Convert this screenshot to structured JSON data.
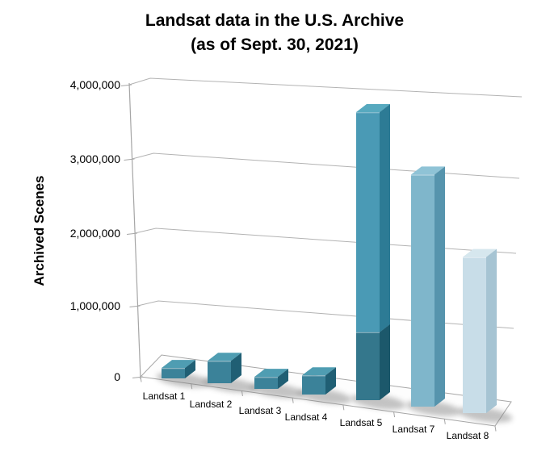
{
  "title": {
    "line1": "Landsat data in the U.S. Archive",
    "line2": "(as of Sept. 30, 2021)"
  },
  "y_axis": {
    "label": "Archived Scenes",
    "ticks": [
      "0",
      "1,000,000",
      "2,000,000",
      "3,000,000",
      "4,000,000"
    ]
  },
  "chart_data": {
    "type": "bar",
    "style": "3d-column",
    "title": "Landsat data in the U.S. Archive (as of Sept. 30, 2021)",
    "xlabel": "",
    "ylabel": "Archived Scenes",
    "ylim": [
      0,
      4000000
    ],
    "yticks": [
      0,
      1000000,
      2000000,
      3000000,
      4000000
    ],
    "grid": true,
    "legend": false,
    "categories": [
      "Landsat 1",
      "Landsat 2",
      "Landsat 3",
      "Landsat 4",
      "Landsat 5",
      "Landsat 7",
      "Landsat 8"
    ],
    "values": [
      130000,
      280000,
      150000,
      240000,
      3600000,
      2900000,
      1950000
    ],
    "landsat5_stack": {
      "lower_segment": 850000,
      "upper_segment": 2750000
    }
  },
  "colors": {
    "background": "#ffffff",
    "gridline": "#b3b3b3",
    "axis": "#a6a6a6",
    "shadow": "#7d7d7d"
  },
  "bars": [
    {
      "id": "landsat-1",
      "label": "Landsat 1",
      "value": 130000,
      "colors": {
        "front": "#3b8299",
        "side": "#205f74",
        "top": "#4f9db2"
      }
    },
    {
      "id": "landsat-2",
      "label": "Landsat 2",
      "value": 280000,
      "colors": {
        "front": "#3b8299",
        "side": "#205f74",
        "top": "#4f9db2"
      }
    },
    {
      "id": "landsat-3",
      "label": "Landsat 3",
      "value": 150000,
      "colors": {
        "front": "#3b8299",
        "side": "#205f74",
        "top": "#4f9db2"
      }
    },
    {
      "id": "landsat-4",
      "label": "Landsat 4",
      "value": 240000,
      "colors": {
        "front": "#3b8299",
        "side": "#205f74",
        "top": "#4f9db2"
      }
    },
    {
      "id": "landsat-5",
      "label": "Landsat 5",
      "value": 3600000,
      "segments": [
        {
          "name": "lower",
          "value": 850000,
          "colors": {
            "front": "#34778c",
            "side": "#1c586b",
            "top": "#417f93"
          }
        },
        {
          "name": "upper",
          "value": 2750000,
          "colors": {
            "front": "#4a9ab5",
            "side": "#2d7b95",
            "top": "#57a9bf"
          }
        }
      ]
    },
    {
      "id": "landsat-7",
      "label": "Landsat 7",
      "value": 2900000,
      "colors": {
        "front": "#7fb6cb",
        "side": "#5694ad",
        "top": "#8fc3d6"
      }
    },
    {
      "id": "landsat-8",
      "label": "Landsat 8",
      "value": 1950000,
      "colors": {
        "front": "#c8dde8",
        "side": "#a6c4d3",
        "top": "#d6e7ee"
      }
    }
  ]
}
